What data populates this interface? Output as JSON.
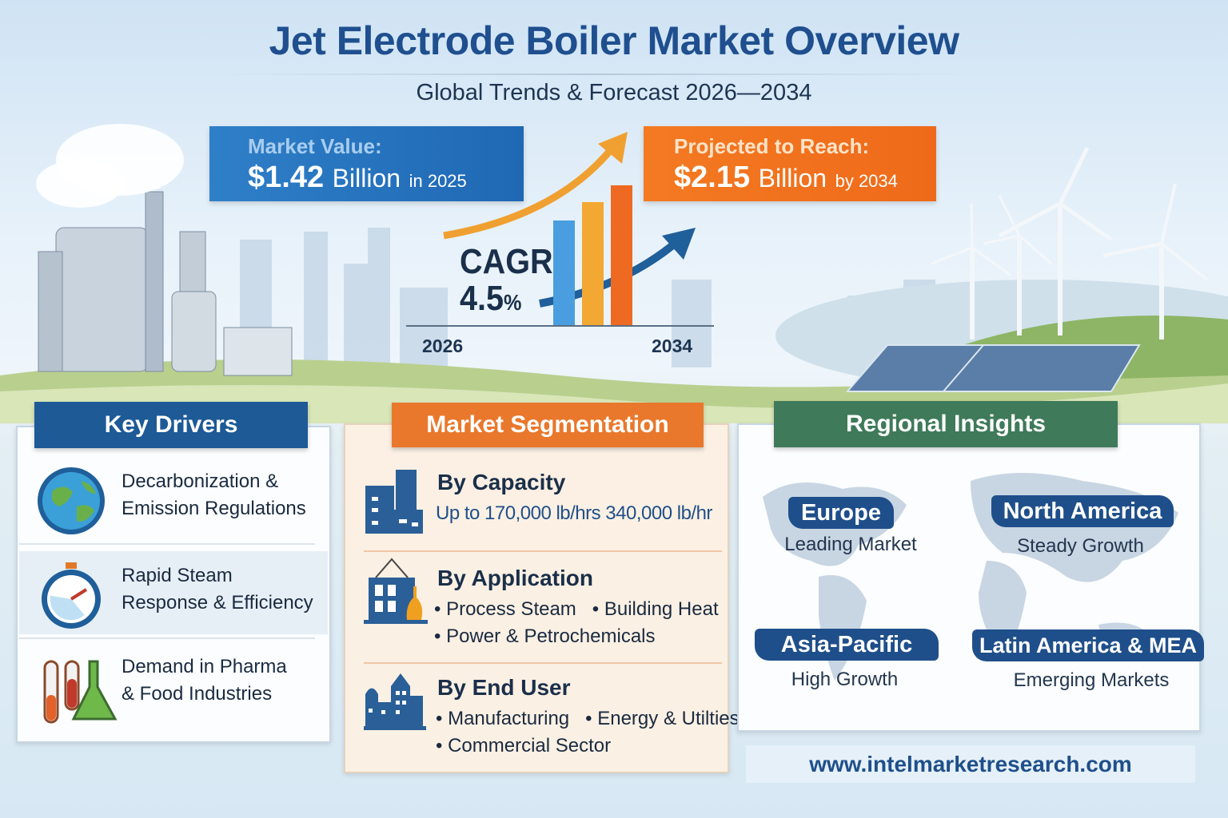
{
  "header": {
    "title": "Jet Electrode Boiler Market Overview",
    "subtitle": "Global Trends & Forecast 2026—2034"
  },
  "market_value": {
    "label": "Market Value:",
    "amount": "$1.42",
    "unit": "Billion",
    "suffix": "in 2025",
    "color": "#2274be"
  },
  "projected": {
    "label": "Projected to Reach:",
    "amount": "$2.15",
    "unit": "Billion",
    "suffix": "by 2034",
    "color": "#f07420"
  },
  "growth": {
    "cagr_label": "CAGR",
    "cagr_value": "4.5",
    "cagr_unit": "%",
    "start_year": "2026",
    "end_year": "2034"
  },
  "key_drivers": {
    "title": "Key Drivers",
    "color": "#1d5a96",
    "items": [
      {
        "line1": "Decarbonization &",
        "line2": "Emission Regulations",
        "icon": "globe-icon"
      },
      {
        "line1": "Rapid Steam",
        "line2": "Response & Efficiency",
        "icon": "stopwatch-icon"
      },
      {
        "line1": "Demand in Pharma",
        "line2": "& Food Industries",
        "icon": "test-tubes-icon"
      }
    ]
  },
  "segmentation": {
    "title": "Market Segmentation",
    "color": "#e9782c",
    "items": [
      {
        "heading": "By Capacity",
        "line1": "Up to 170,000 lb/hrs 340,000 lb/hr",
        "line2": "",
        "icon": "factory-icon"
      },
      {
        "heading": "By Application",
        "line1": "• Process Steam   • Building Heat",
        "line2": "• Power & Petrochemicals",
        "icon": "refinery-icon"
      },
      {
        "heading": "By End User",
        "line1": "• Manufacturing   • Energy & Utilties",
        "line2": "• Commercial Sector",
        "icon": "city-buildings-icon"
      }
    ]
  },
  "regional": {
    "title": "Regional Insights",
    "color": "#3f7a5a",
    "regions": [
      {
        "name": "Europe",
        "status": "Leading Market"
      },
      {
        "name": "North America",
        "status": "Steady Growth"
      },
      {
        "name": "Asia-Pacific",
        "status": "High Growth"
      },
      {
        "name": "Latin America & MEA",
        "status": "Emerging Markets"
      }
    ]
  },
  "footer": {
    "url": "www.intelmarketresearch.com"
  }
}
